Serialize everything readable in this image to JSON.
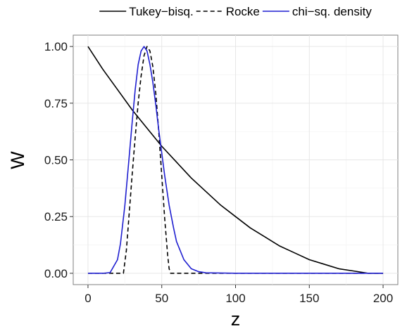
{
  "chart_data": {
    "type": "line",
    "title": "",
    "xlabel": "z",
    "ylabel": "W",
    "xlim": [
      -10,
      210
    ],
    "ylim": [
      -0.05,
      1.05
    ],
    "x_ticks": [
      0,
      50,
      100,
      150,
      200
    ],
    "x_tick_labels": [
      "0",
      "50",
      "100",
      "150",
      "200"
    ],
    "y_ticks": [
      0,
      0.25,
      0.5,
      0.75,
      1.0
    ],
    "y_tick_labels": [
      "0.00",
      "0.25",
      "0.50",
      "0.75",
      "1.00"
    ],
    "grid": true,
    "legend_position": "top",
    "series": [
      {
        "name": "Tukey−bisq.",
        "color": "#000000",
        "dash": "solid",
        "x": [
          0,
          10,
          20,
          30,
          40,
          50,
          60,
          70,
          80,
          90,
          100,
          110,
          120,
          130,
          140,
          150,
          160,
          170,
          180,
          190,
          200
        ],
        "y": [
          1.0,
          0.9,
          0.81,
          0.72,
          0.64,
          0.56,
          0.49,
          0.42,
          0.36,
          0.3,
          0.25,
          0.2,
          0.16,
          0.12,
          0.09,
          0.06,
          0.04,
          0.02,
          0.01,
          0.0,
          0.0
        ]
      },
      {
        "name": "Rocke",
        "color": "#000000",
        "dash": "dashed",
        "x": [
          0,
          20,
          24,
          26,
          28,
          30,
          32,
          34,
          36,
          38,
          40,
          42,
          44,
          46,
          48,
          50,
          52,
          54,
          55,
          56,
          60,
          80,
          100,
          150,
          200
        ],
        "y": [
          0,
          0,
          0,
          0.1,
          0.27,
          0.44,
          0.6,
          0.75,
          0.87,
          0.96,
          1.0,
          0.98,
          0.91,
          0.79,
          0.62,
          0.43,
          0.24,
          0.08,
          0.02,
          0,
          0,
          0,
          0,
          0,
          0
        ]
      },
      {
        "name": "chi−sq. density",
        "color": "#1f1fd0",
        "dash": "solid",
        "x": [
          0,
          10,
          15,
          20,
          22,
          25,
          28,
          30,
          32,
          34,
          36,
          38,
          40,
          42,
          44,
          46,
          48,
          50,
          52,
          55,
          58,
          60,
          65,
          70,
          75,
          80,
          100,
          150,
          200
        ],
        "y": [
          0,
          0,
          0.003,
          0.06,
          0.13,
          0.3,
          0.52,
          0.67,
          0.81,
          0.92,
          0.98,
          1.0,
          0.98,
          0.92,
          0.84,
          0.74,
          0.63,
          0.53,
          0.43,
          0.3,
          0.2,
          0.14,
          0.06,
          0.02,
          0.007,
          0.002,
          0,
          0,
          0
        ]
      }
    ]
  }
}
